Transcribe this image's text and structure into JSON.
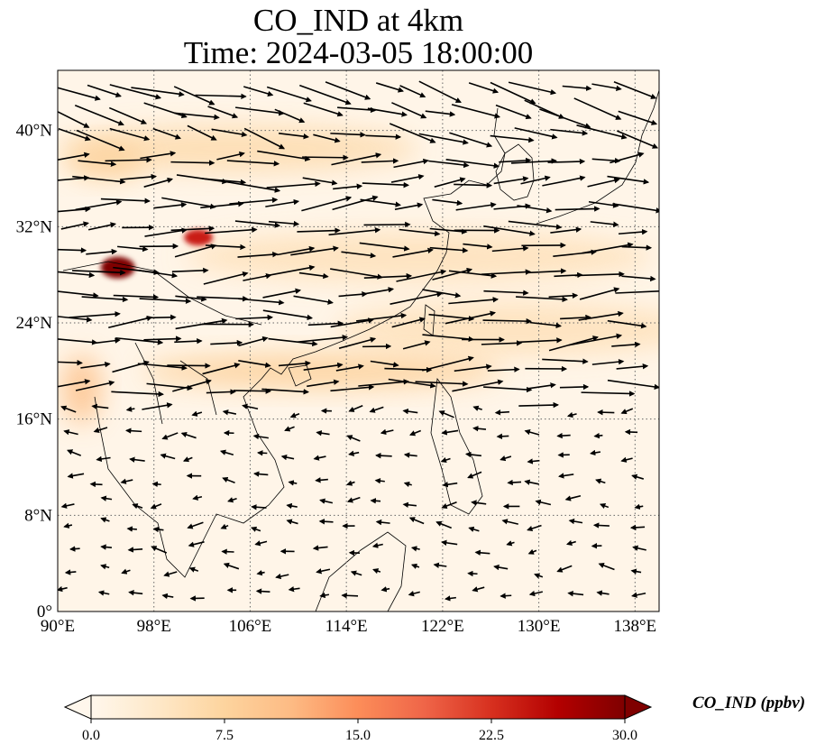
{
  "figure": {
    "title_line1": "CO_IND at 4km",
    "title_line2": "Time: 2024-03-05 18:00:00"
  },
  "map": {
    "extent": {
      "lon": [
        90,
        140
      ],
      "lat": [
        0,
        45
      ]
    },
    "lon_ticks": [
      {
        "value": 90,
        "label": "90°E"
      },
      {
        "value": 98,
        "label": "98°E"
      },
      {
        "value": 106,
        "label": "106°E"
      },
      {
        "value": 114,
        "label": "114°E"
      },
      {
        "value": 122,
        "label": "122°E"
      },
      {
        "value": 130,
        "label": "130°E"
      },
      {
        "value": 138,
        "label": "138°E"
      }
    ],
    "lat_ticks": [
      {
        "value": 0,
        "label": "0°"
      },
      {
        "value": 8,
        "label": "8°N"
      },
      {
        "value": 16,
        "label": "16°N"
      },
      {
        "value": 24,
        "label": "24°N"
      },
      {
        "value": 32,
        "label": "32°N"
      },
      {
        "value": 40,
        "label": "40°N"
      }
    ],
    "gridlines": true,
    "field": {
      "variable": "CO_IND",
      "units": "ppbv",
      "plumes": [
        {
          "name": "northern-band",
          "lon": 105,
          "lat": 38.5,
          "value": 6
        },
        {
          "name": "west-plume",
          "lon": 94,
          "lat": 37.5,
          "value": 8
        },
        {
          "name": "yangtze-band",
          "lon": 120,
          "lat": 29.5,
          "value": 5
        },
        {
          "name": "pacific-band",
          "lon": 128,
          "lat": 23.5,
          "value": 5
        },
        {
          "name": "south-band",
          "lon": 112,
          "lat": 20,
          "value": 8
        },
        {
          "name": "myanmar-plume",
          "lon": 92,
          "lat": 18.5,
          "value": 10
        },
        {
          "name": "hotspot-sichuan",
          "lon": 101.7,
          "lat": 31.1,
          "value": 24
        },
        {
          "name": "hotspot-tibet",
          "lon": 95,
          "lat": 28.6,
          "value": 30
        }
      ]
    }
  },
  "colorbar": {
    "label": "CO_IND (ppbv)",
    "range": [
      0,
      30
    ],
    "ticks": [
      "0.0",
      "7.5",
      "15.0",
      "22.5",
      "30.0"
    ],
    "extend": "both",
    "colormap": "OrRd",
    "stops": [
      "#fff7ec",
      "#fee8c8",
      "#fdd49e",
      "#fdbb84",
      "#fc8d59",
      "#ef6548",
      "#d7301f",
      "#b30000",
      "#7f0000"
    ]
  }
}
